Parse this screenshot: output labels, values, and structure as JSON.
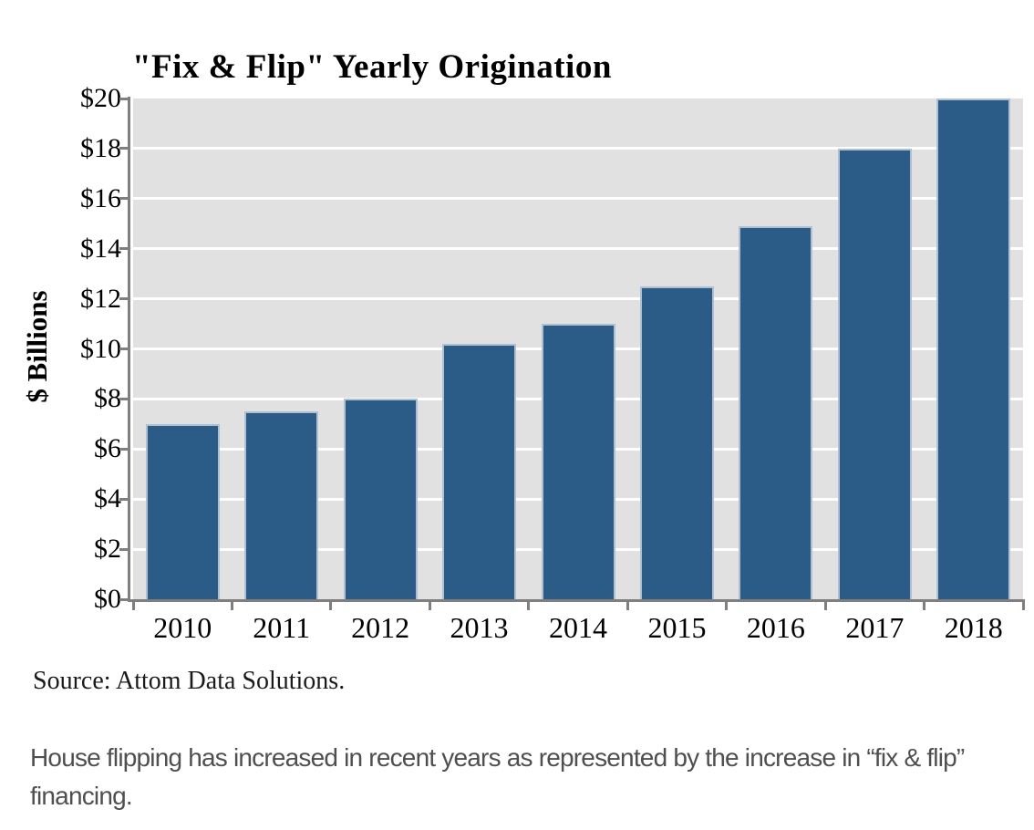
{
  "chart_data": {
    "type": "bar",
    "title": "\"Fix & Flip\" Yearly Origination",
    "ylabel": "$ Billions",
    "xlabel": "",
    "categories": [
      "2010",
      "2011",
      "2012",
      "2013",
      "2014",
      "2015",
      "2016",
      "2017",
      "2018"
    ],
    "values": [
      7.0,
      7.5,
      8.0,
      10.2,
      11.0,
      12.5,
      14.9,
      18.0,
      20.0
    ],
    "ylim": [
      0,
      20
    ],
    "ytick_step": 2,
    "ytick_labels": [
      "$0",
      "$2",
      "$4",
      "$6",
      "$8",
      "$10",
      "$12",
      "$14",
      "$16",
      "$18",
      "$20"
    ],
    "legend": "none",
    "grid": "horizontal",
    "colors": {
      "bar_fill": "#2b5c88",
      "bar_border": "#aec0d2",
      "plot_background": "#e1e1e1",
      "gridline": "#ffffff",
      "axis": "#7f7f7f",
      "text": "#000000",
      "caption_text": "#4f4f50"
    }
  },
  "source_note": "Source: Attom Data Solutions.",
  "caption": "House flipping has increased in recent years as represented by the increase in “fix & flip” financing."
}
